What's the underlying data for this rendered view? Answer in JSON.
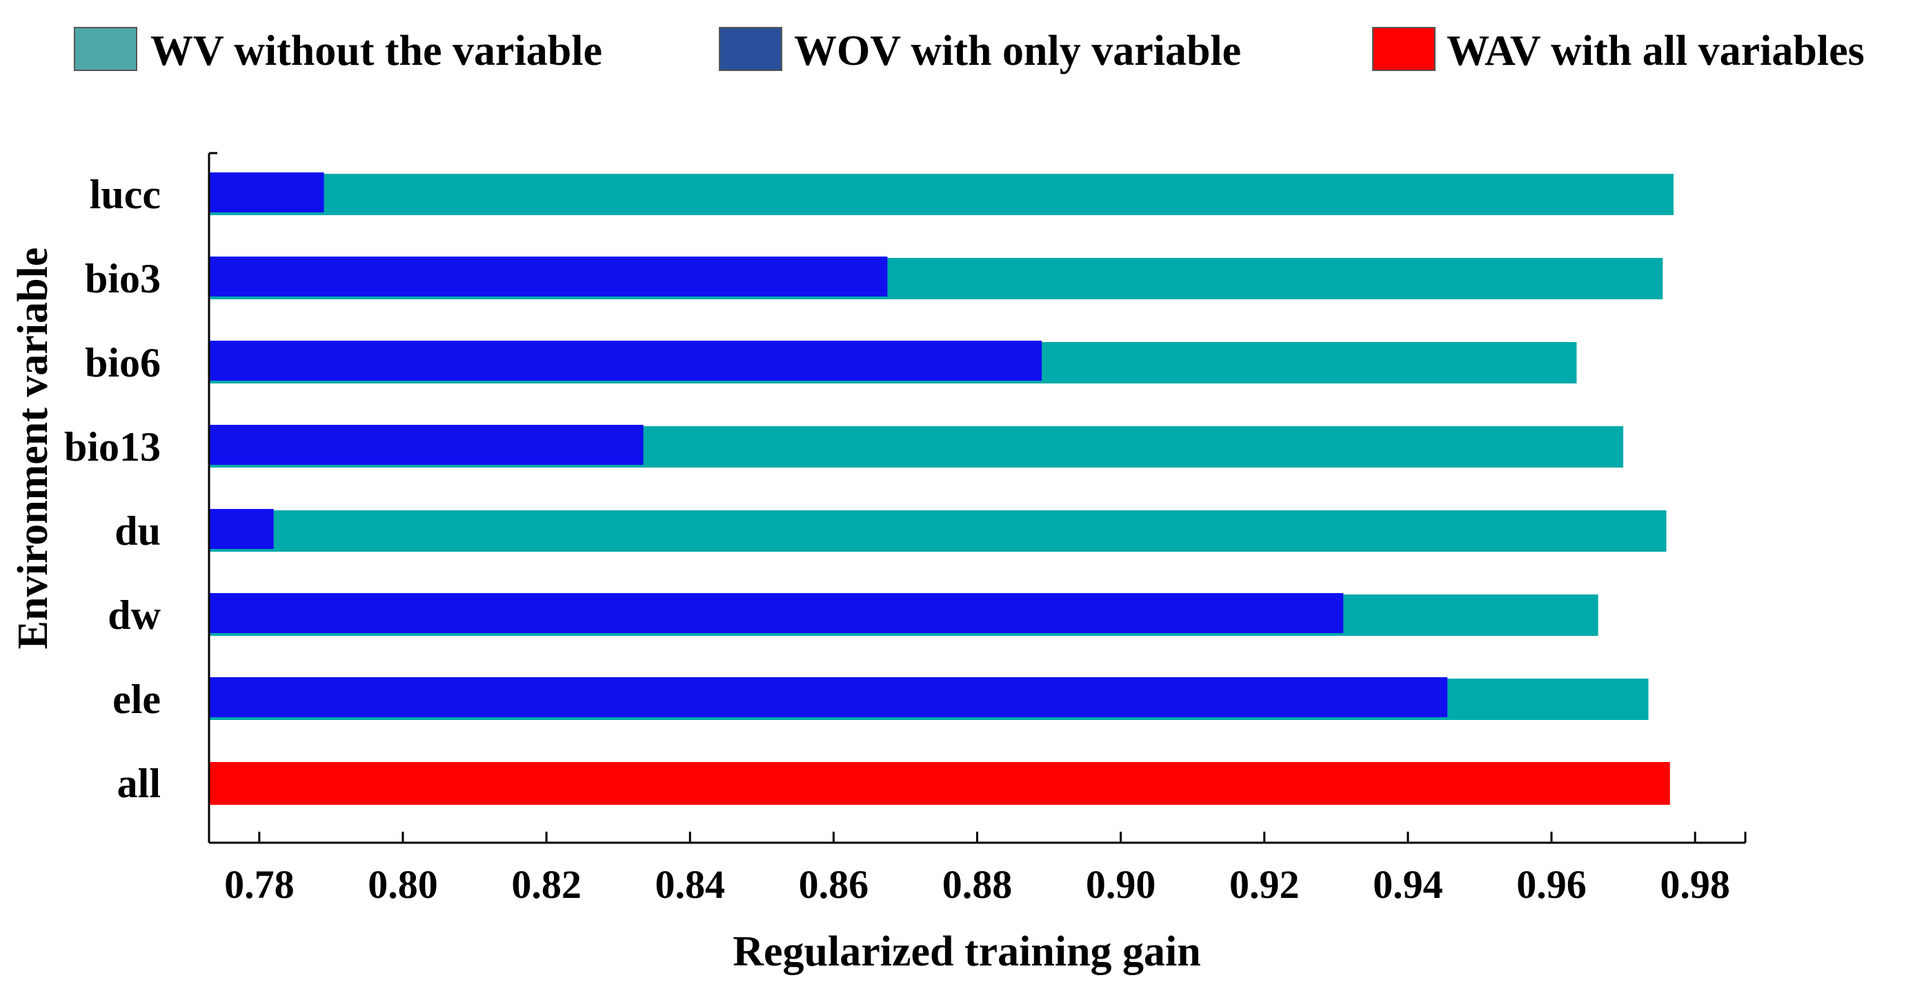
{
  "chart_data": {
    "type": "bar",
    "orientation": "horizontal",
    "title": "",
    "xlabel": "Regularized training gain",
    "ylabel": "Environment  variable",
    "xlim": [
      0.773,
      0.987
    ],
    "xticks": [
      "0.78",
      "0.80",
      "0.82",
      "0.84",
      "0.86",
      "0.88",
      "0.90",
      "0.92",
      "0.94",
      "0.96",
      "0.98"
    ],
    "xtick_values": [
      0.78,
      0.8,
      0.82,
      0.84,
      0.86,
      0.88,
      0.9,
      0.92,
      0.94,
      0.96,
      0.98
    ],
    "categories": [
      "lucc",
      "bio3",
      "bio6",
      "bio13",
      "du",
      "dw",
      "ele",
      "all"
    ],
    "series": [
      {
        "key": "wv",
        "name": "WV without the variable",
        "color": "#00aaaa",
        "legend_color": "#4fa8a8",
        "values": [
          0.977,
          0.9755,
          0.9635,
          0.97,
          0.976,
          0.9665,
          0.9735,
          null
        ]
      },
      {
        "key": "wov",
        "name": "WOV with only variable",
        "color": "#1010ee",
        "legend_color": "#2a4f9a",
        "values": [
          0.789,
          0.8675,
          0.889,
          0.8335,
          0.782,
          0.931,
          0.9455,
          null
        ]
      },
      {
        "key": "wav",
        "name": "WAV with all variables",
        "color": "#ff0000",
        "legend_color": "#ff0000",
        "values": [
          null,
          null,
          null,
          null,
          null,
          null,
          null,
          0.9765
        ]
      }
    ],
    "legend": {
      "position": "top",
      "items": [
        {
          "label": "WV without the variable",
          "color": "#4fa8a8",
          "name": "legend-wv"
        },
        {
          "label": "WOV with only variable",
          "color": "#2a4f9a",
          "name": "legend-wov"
        },
        {
          "label": "WAV with all variables",
          "color": "#ff0000",
          "name": "legend-wav"
        }
      ]
    },
    "grid": false
  }
}
